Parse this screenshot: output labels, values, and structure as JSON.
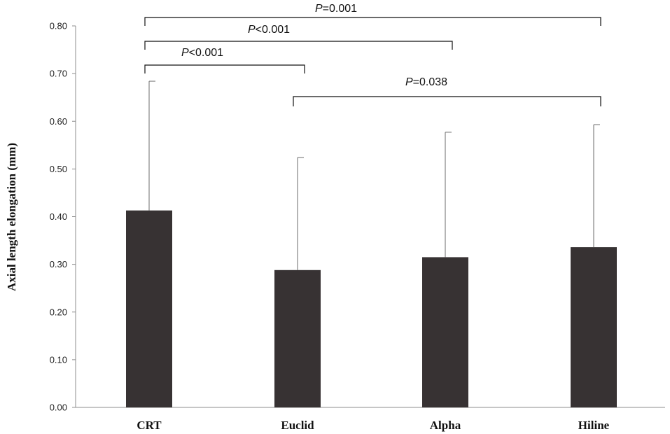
{
  "chart_data": {
    "type": "bar",
    "categories": [
      "CRT",
      "Euclid",
      "Alpha",
      "Hiline"
    ],
    "values": [
      0.413,
      0.288,
      0.315,
      0.336
    ],
    "error_upper": [
      0.684,
      0.524,
      0.577,
      0.593
    ],
    "ylabel": "Axial length elongation (mm)",
    "xlabel": "",
    "ylim": [
      0,
      0.8
    ],
    "yticks": [
      "0.00",
      "0.10",
      "0.20",
      "0.30",
      "0.40",
      "0.50",
      "0.60",
      "0.70",
      "0.80"
    ],
    "bar_color": "#373233",
    "grid": false,
    "significance": [
      {
        "from": "CRT",
        "to": "Hiline",
        "p_symbol": "P",
        "p_value": "=0.001"
      },
      {
        "from": "CRT",
        "to": "Alpha",
        "p_symbol": "P",
        "p_value": "<0.001"
      },
      {
        "from": "CRT",
        "to": "Euclid",
        "p_symbol": "P",
        "p_value": "<0.001"
      },
      {
        "from": "Euclid",
        "to": "Hiline",
        "p_symbol": "P",
        "p_value": "=0.038"
      }
    ]
  }
}
